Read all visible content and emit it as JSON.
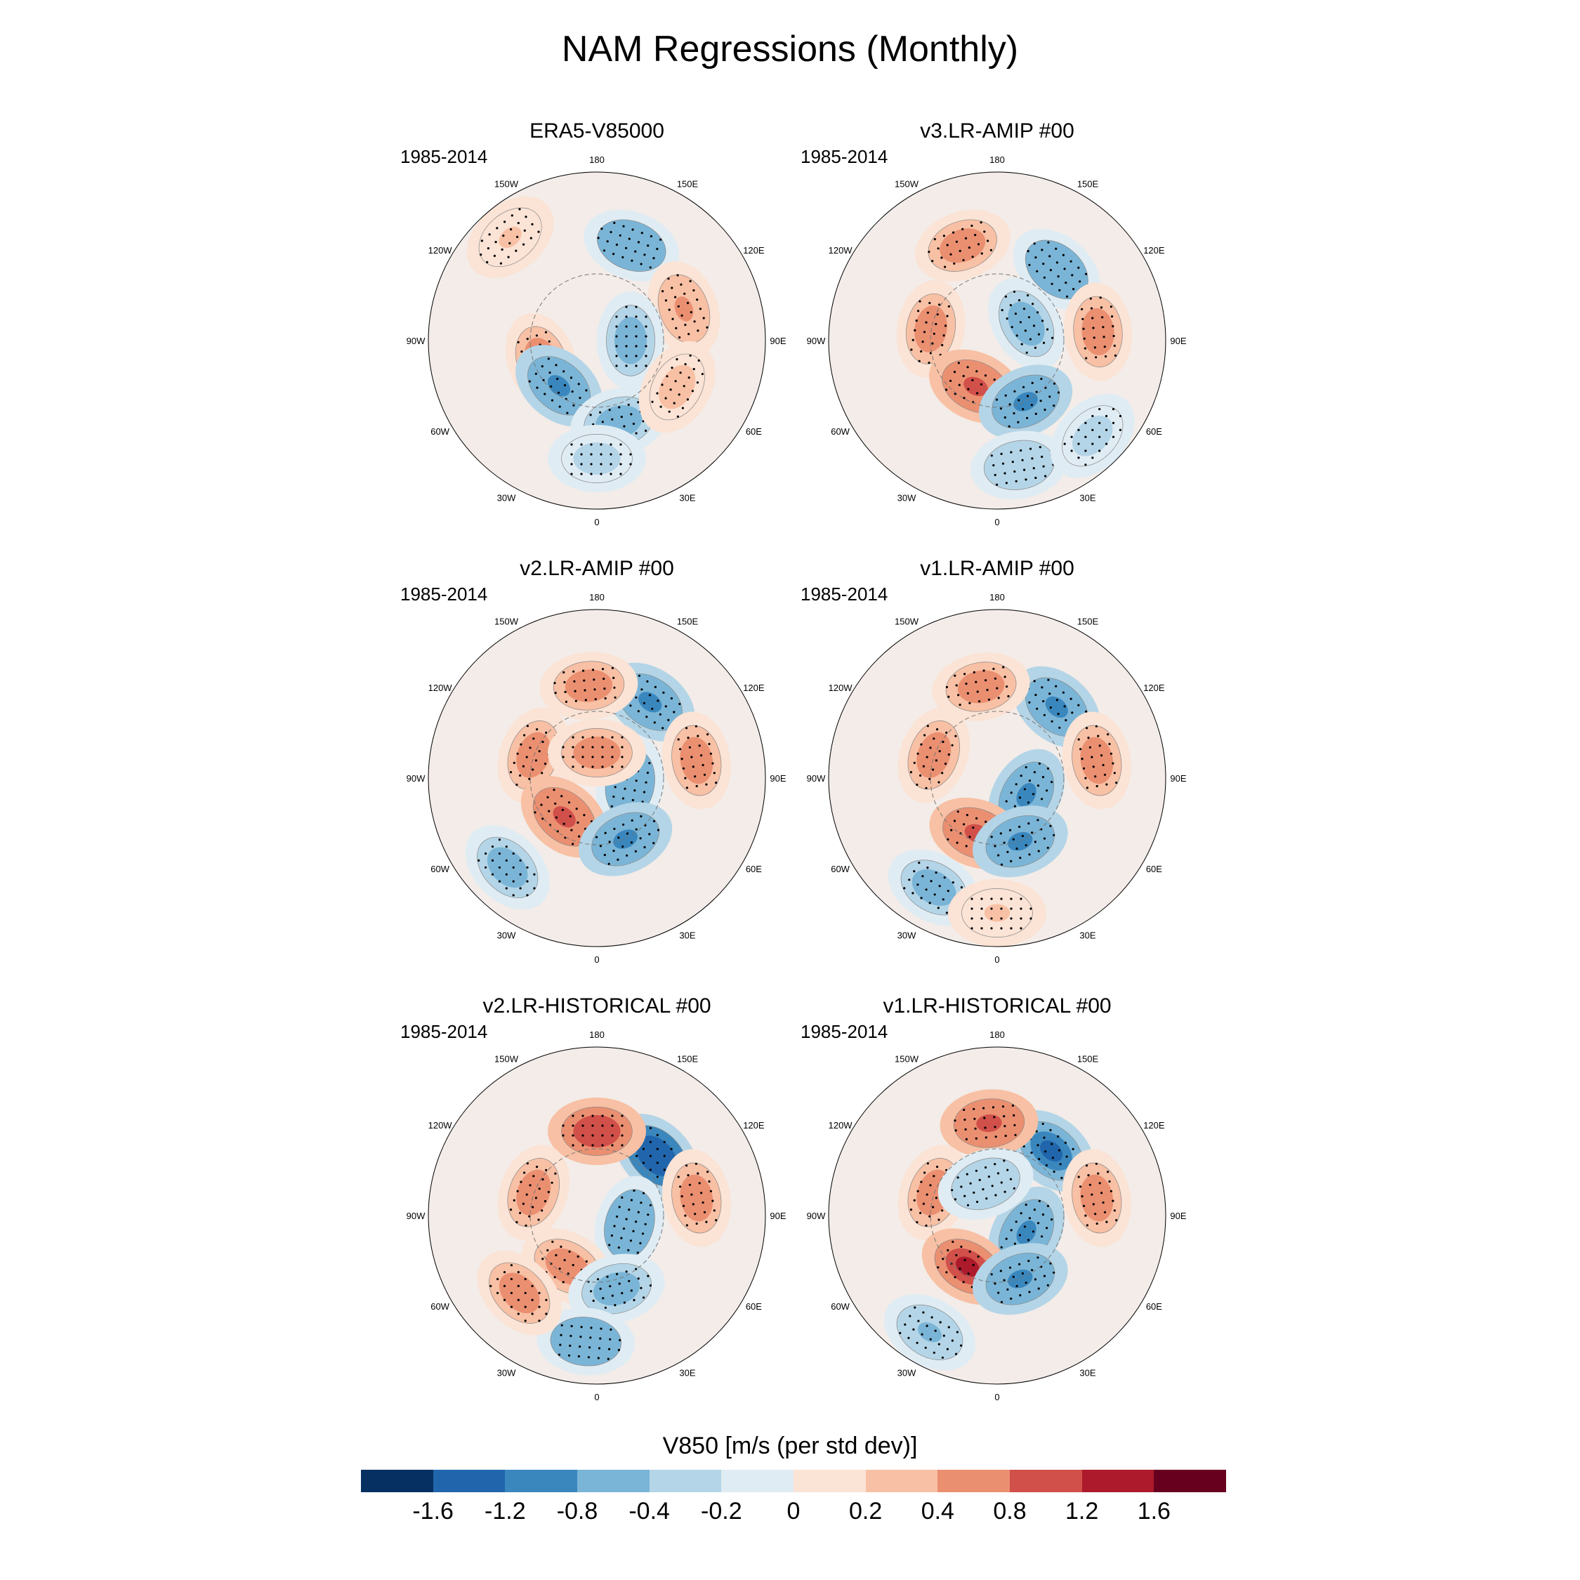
{
  "title": "NAM Regressions (Monthly)",
  "panels": [
    {
      "name": "ERA5-V85000",
      "period": "1985-2014"
    },
    {
      "name": "v3.LR-AMIP  #00",
      "period": "1985-2014"
    },
    {
      "name": "v2.LR-AMIP  #00",
      "period": "1985-2014"
    },
    {
      "name": "v1.LR-AMIP  #00",
      "period": "1985-2014"
    },
    {
      "name": "v2.LR-HISTORICAL  #00",
      "period": "1985-2014"
    },
    {
      "name": "v1.LR-HISTORICAL  #00",
      "period": "1985-2014"
    }
  ],
  "lon_labels": [
    "180",
    "150E",
    "120E",
    "90E",
    "60E",
    "30E",
    "0",
    "30W",
    "60W",
    "90W",
    "120W",
    "150W"
  ],
  "colorbar": {
    "title": "V850 [m/s (per std dev)]",
    "tick_labels": [
      "-1.6",
      "-1.2",
      "-0.8",
      "-0.4",
      "-0.2",
      "0",
      "0.2",
      "0.4",
      "0.8",
      "1.2",
      "1.6"
    ],
    "colors": [
      "#053061",
      "#2166ac",
      "#3a87be",
      "#7ab5d7",
      "#b4d5e7",
      "#e0ecf3",
      "#fbe3d5",
      "#f8c0a4",
      "#eb8f71",
      "#d1504a",
      "#ad1a2b",
      "#67001f"
    ]
  },
  "anomaly_centers": [
    [
      {
        "lon": 160,
        "r": 0.6,
        "v": -0.8
      },
      {
        "lon": 110,
        "r": 0.55,
        "v": 0.4
      },
      {
        "lon": 90,
        "r": 0.2,
        "v": -0.7
      },
      {
        "lon": 290,
        "r": 0.35,
        "v": 0.6
      },
      {
        "lon": 320,
        "r": 0.35,
        "v": -0.9
      },
      {
        "lon": 15,
        "r": 0.5,
        "v": -0.6
      },
      {
        "lon": 0,
        "r": 0.7,
        "v": -0.3
      },
      {
        "lon": 60,
        "r": 0.55,
        "v": 0.3
      },
      {
        "lon": 220,
        "r": 0.8,
        "v": 0.2
      }
    ],
    [
      {
        "lon": 140,
        "r": 0.55,
        "v": -0.8
      },
      {
        "lon": 200,
        "r": 0.6,
        "v": 0.6
      },
      {
        "lon": 120,
        "r": 0.2,
        "v": -0.7
      },
      {
        "lon": 95,
        "r": 0.6,
        "v": 0.6
      },
      {
        "lon": 260,
        "r": 0.4,
        "v": 0.7
      },
      {
        "lon": 335,
        "r": 0.3,
        "v": 0.8
      },
      {
        "lon": 25,
        "r": 0.4,
        "v": -0.9
      },
      {
        "lon": 10,
        "r": 0.75,
        "v": -0.4
      },
      {
        "lon": 45,
        "r": 0.8,
        "v": -0.3
      }
    ],
    [
      {
        "lon": 145,
        "r": 0.55,
        "v": -1.0
      },
      {
        "lon": 185,
        "r": 0.55,
        "v": 0.7
      },
      {
        "lon": 100,
        "r": 0.6,
        "v": 0.6
      },
      {
        "lon": 80,
        "r": 0.2,
        "v": -0.8
      },
      {
        "lon": 250,
        "r": 0.4,
        "v": 0.7
      },
      {
        "lon": 320,
        "r": 0.3,
        "v": 0.9
      },
      {
        "lon": 25,
        "r": 0.4,
        "v": -0.9
      },
      {
        "lon": 315,
        "r": 0.75,
        "v": -0.7
      },
      {
        "lon": 180,
        "r": 0.15,
        "v": 0.5
      }
    ],
    [
      {
        "lon": 140,
        "r": 0.55,
        "v": -1.0
      },
      {
        "lon": 190,
        "r": 0.55,
        "v": 0.5
      },
      {
        "lon": 100,
        "r": 0.6,
        "v": 0.5
      },
      {
        "lon": 60,
        "r": 0.2,
        "v": -0.9
      },
      {
        "lon": 250,
        "r": 0.4,
        "v": 0.6
      },
      {
        "lon": 340,
        "r": 0.35,
        "v": 0.9
      },
      {
        "lon": 20,
        "r": 0.4,
        "v": -1.0
      },
      {
        "lon": 330,
        "r": 0.75,
        "v": -0.6
      },
      {
        "lon": 0,
        "r": 0.8,
        "v": 0.2
      }
    ],
    [
      {
        "lon": 135,
        "r": 0.5,
        "v": -1.6
      },
      {
        "lon": 180,
        "r": 0.5,
        "v": 1.1
      },
      {
        "lon": 100,
        "r": 0.6,
        "v": 0.6
      },
      {
        "lon": 75,
        "r": 0.2,
        "v": -0.8
      },
      {
        "lon": 250,
        "r": 0.4,
        "v": 0.7
      },
      {
        "lon": 330,
        "r": 0.35,
        "v": 0.6
      },
      {
        "lon": 15,
        "r": 0.45,
        "v": -0.7
      },
      {
        "lon": 355,
        "r": 0.75,
        "v": -0.8
      },
      {
        "lon": 315,
        "r": 0.65,
        "v": 0.5
      }
    ],
    [
      {
        "lon": 140,
        "r": 0.5,
        "v": -1.3
      },
      {
        "lon": 185,
        "r": 0.55,
        "v": 0.9
      },
      {
        "lon": 100,
        "r": 0.6,
        "v": 0.5
      },
      {
        "lon": 60,
        "r": 0.2,
        "v": -0.9
      },
      {
        "lon": 250,
        "r": 0.4,
        "v": 0.6
      },
      {
        "lon": 330,
        "r": 0.35,
        "v": 1.2
      },
      {
        "lon": 20,
        "r": 0.4,
        "v": -1.0
      },
      {
        "lon": 330,
        "r": 0.8,
        "v": -0.5
      },
      {
        "lon": 200,
        "r": 0.2,
        "v": -0.4
      }
    ]
  ]
}
